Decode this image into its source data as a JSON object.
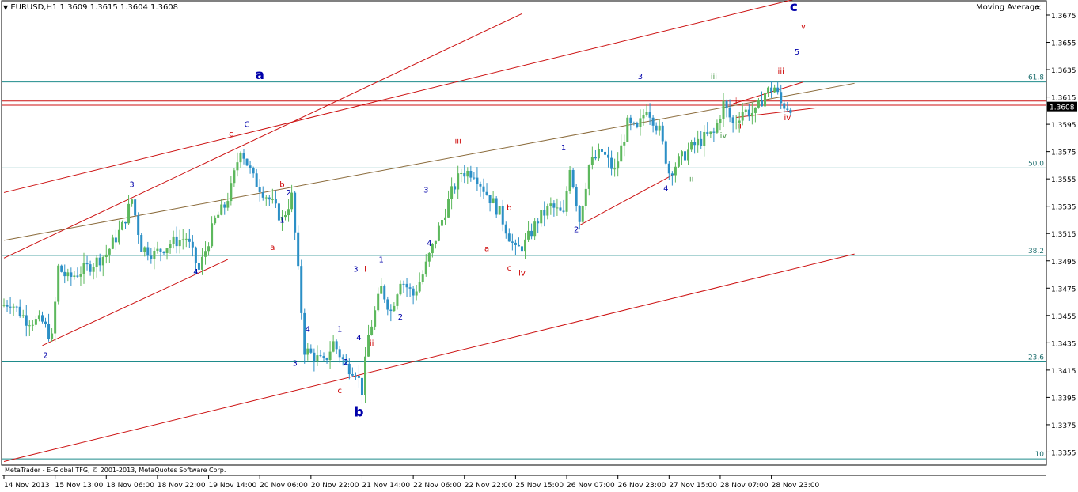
{
  "header": {
    "symbol_line": "EURUSD,H1  1.3609 1.3615 1.3604 1.3608",
    "indicator": "Moving Average",
    "close_glyph": "×",
    "menu_glyph": "▼"
  },
  "watermark": "MetaTrader - E-Global TFG, © 2001-2013, MetaQuotes Software Corp.",
  "colors": {
    "bull": "#5db85d",
    "bear": "#2b8fc6",
    "fib": "#1f8b8b",
    "channel": "#cc1111",
    "trend": "#8a6a3a",
    "wave_blue": "#0000aa",
    "wave_red": "#cc0000",
    "wave_green": "#4a9a4a",
    "price_box": "#000000"
  },
  "chart_data": {
    "type": "candlestick",
    "symbol": "EURUSD",
    "timeframe": "H1",
    "ohlc": {
      "open": 1.3609,
      "high": 1.3615,
      "low": 1.3604,
      "close": 1.3608
    },
    "current_price": "1.3608",
    "ylim": [
      1.3346,
      1.3686
    ],
    "y_ticks": [
      "1.3675",
      "1.3655",
      "1.3635",
      "1.3615",
      "1.3595",
      "1.3575",
      "1.3555",
      "1.3535",
      "1.3515",
      "1.3495",
      "1.3475",
      "1.3455",
      "1.3435",
      "1.3415",
      "1.3395",
      "1.3375",
      "1.3355"
    ],
    "x_ticks": [
      "14 Nov 2013",
      "15 Nov 13:00",
      "18 Nov 06:00",
      "18 Nov 22:00",
      "19 Nov 14:00",
      "20 Nov 06:00",
      "20 Nov 22:00",
      "21 Nov 14:00",
      "22 Nov 06:00",
      "22 Nov 22:00",
      "25 Nov 15:00",
      "26 Nov 07:00",
      "26 Nov 23:00",
      "27 Nov 15:00",
      "28 Nov 07:00",
      "28 Nov 23:00"
    ],
    "x_tick_index": [
      0,
      16,
      32,
      48,
      64,
      80,
      96,
      112,
      128,
      144,
      160,
      176,
      192,
      208,
      224,
      240
    ],
    "n_bars": 250,
    "price_path": [
      [
        0,
        1.3462
      ],
      [
        3,
        1.3465
      ],
      [
        8,
        1.3452
      ],
      [
        13,
        1.345
      ],
      [
        16,
        1.3438
      ],
      [
        18,
        1.349
      ],
      [
        21,
        1.3482
      ],
      [
        27,
        1.349
      ],
      [
        33,
        1.35
      ],
      [
        38,
        1.352
      ],
      [
        41,
        1.354
      ],
      [
        44,
        1.3505
      ],
      [
        48,
        1.35
      ],
      [
        53,
        1.3508
      ],
      [
        58,
        1.3512
      ],
      [
        62,
        1.3488
      ],
      [
        67,
        1.3525
      ],
      [
        70,
        1.3535
      ],
      [
        72,
        1.3548
      ],
      [
        75,
        1.3578
      ],
      [
        79,
        1.3555
      ],
      [
        84,
        1.354
      ],
      [
        88,
        1.3525
      ],
      [
        91,
        1.3542
      ],
      [
        92,
        1.3515
      ],
      [
        95,
        1.343
      ],
      [
        101,
        1.342
      ],
      [
        104,
        1.3435
      ],
      [
        108,
        1.3418
      ],
      [
        111,
        1.3415
      ],
      [
        113,
        1.34
      ],
      [
        115,
        1.344
      ],
      [
        119,
        1.3475
      ],
      [
        122,
        1.3458
      ],
      [
        125,
        1.3482
      ],
      [
        129,
        1.347
      ],
      [
        132,
        1.3485
      ],
      [
        135,
        1.3505
      ],
      [
        138,
        1.3525
      ],
      [
        141,
        1.3545
      ],
      [
        144,
        1.356
      ],
      [
        148,
        1.356
      ],
      [
        151,
        1.3548
      ],
      [
        156,
        1.353
      ],
      [
        161,
        1.3502
      ],
      [
        164,
        1.3508
      ],
      [
        168,
        1.3525
      ],
      [
        172,
        1.3535
      ],
      [
        176,
        1.3528
      ],
      [
        178,
        1.3565
      ],
      [
        181,
        1.3525
      ],
      [
        184,
        1.3565
      ],
      [
        188,
        1.3575
      ],
      [
        192,
        1.356
      ],
      [
        196,
        1.3595
      ],
      [
        199,
        1.359
      ],
      [
        202,
        1.3608
      ],
      [
        206,
        1.359
      ],
      [
        209,
        1.356
      ],
      [
        212,
        1.3568
      ],
      [
        216,
        1.3578
      ],
      [
        220,
        1.3585
      ],
      [
        223,
        1.3588
      ],
      [
        226,
        1.361
      ],
      [
        229,
        1.3595
      ],
      [
        232,
        1.3605
      ],
      [
        236,
        1.3603
      ],
      [
        239,
        1.3618
      ],
      [
        242,
        1.3622
      ],
      [
        244,
        1.361
      ],
      [
        246,
        1.3608
      ]
    ],
    "fib_levels": [
      {
        "label": "61.8",
        "price": 1.3626
      },
      {
        "label": "50.0",
        "price": 1.3563
      },
      {
        "label": "38.2",
        "price": 1.3499
      },
      {
        "label": "23.6",
        "price": 1.3421
      },
      {
        "label": "10",
        "price": 1.335
      }
    ],
    "h_lines": [
      1.3612,
      1.3609
    ],
    "trend_lines": [
      {
        "kind": "channel",
        "p1": [
          0,
          1.3545
        ],
        "p2": [
          248,
          1.3687
        ]
      },
      {
        "kind": "channel",
        "p1": [
          0,
          1.3497
        ],
        "p2": [
          162,
          1.3676
        ]
      },
      {
        "kind": "channel",
        "p1": [
          0,
          1.3348
        ],
        "p2": [
          266,
          1.35
        ]
      },
      {
        "kind": "channel",
        "p1": [
          12,
          1.3433
        ],
        "p2": [
          70,
          1.3496
        ]
      },
      {
        "kind": "channel",
        "p1": [
          180,
          1.3521
        ],
        "p2": [
          210,
          1.3559
        ]
      },
      {
        "kind": "channel",
        "p1": [
          228,
          1.361
        ],
        "p2": [
          250,
          1.3626
        ]
      },
      {
        "kind": "channel",
        "p1": [
          229,
          1.36
        ],
        "p2": [
          254,
          1.3607
        ]
      },
      {
        "kind": "trend",
        "p1": [
          0,
          1.351
        ],
        "p2": [
          266,
          1.3625
        ]
      }
    ],
    "annotations": [
      {
        "text": "a",
        "i": 80,
        "price": 1.3628,
        "color": "blue",
        "size": "big"
      },
      {
        "text": "b",
        "i": 111,
        "price": 1.3381,
        "color": "blue",
        "size": "big"
      },
      {
        "text": "c",
        "i": 247,
        "price": 1.3678,
        "color": "blue",
        "size": "big"
      },
      {
        "text": "C",
        "i": 76,
        "price": 1.3593,
        "color": "blue",
        "size": "small"
      },
      {
        "text": "c",
        "i": 71,
        "price": 1.3586,
        "color": "red",
        "size": "small"
      },
      {
        "text": "2",
        "i": 13,
        "price": 1.3424,
        "color": "blue",
        "size": "small"
      },
      {
        "text": "3",
        "i": 40,
        "price": 1.3549,
        "color": "blue",
        "size": "small"
      },
      {
        "text": "4",
        "i": 60,
        "price": 1.3485,
        "color": "blue",
        "size": "small"
      },
      {
        "text": "b",
        "i": 87,
        "price": 1.3549,
        "color": "red",
        "size": "small"
      },
      {
        "text": "2",
        "i": 89,
        "price": 1.3543,
        "color": "blue",
        "size": "small"
      },
      {
        "text": "1",
        "i": 87,
        "price": 1.3523,
        "color": "blue",
        "size": "small"
      },
      {
        "text": "a",
        "i": 84,
        "price": 1.3503,
        "color": "red",
        "size": "small"
      },
      {
        "text": "4",
        "i": 95,
        "price": 1.3443,
        "color": "blue",
        "size": "small"
      },
      {
        "text": "3",
        "i": 91,
        "price": 1.3418,
        "color": "blue",
        "size": "small"
      },
      {
        "text": "1",
        "i": 105,
        "price": 1.3443,
        "color": "blue",
        "size": "small"
      },
      {
        "text": "2",
        "i": 107,
        "price": 1.3419,
        "color": "blue",
        "size": "small"
      },
      {
        "text": "c",
        "i": 105,
        "price": 1.3398,
        "color": "red",
        "size": "small"
      },
      {
        "text": "3",
        "i": 110,
        "price": 1.3487,
        "color": "blue",
        "size": "small"
      },
      {
        "text": "i",
        "i": 113,
        "price": 1.3487,
        "color": "red",
        "size": "small"
      },
      {
        "text": "4",
        "i": 111,
        "price": 1.3437,
        "color": "blue",
        "size": "small"
      },
      {
        "text": "ii",
        "i": 115,
        "price": 1.3433,
        "color": "red",
        "size": "small"
      },
      {
        "text": "1",
        "i": 118,
        "price": 1.3494,
        "color": "blue",
        "size": "small"
      },
      {
        "text": "2",
        "i": 124,
        "price": 1.3452,
        "color": "blue",
        "size": "small"
      },
      {
        "text": "3",
        "i": 132,
        "price": 1.3545,
        "color": "blue",
        "size": "small"
      },
      {
        "text": "4",
        "i": 133,
        "price": 1.3506,
        "color": "blue",
        "size": "small"
      },
      {
        "text": "iii",
        "i": 142,
        "price": 1.3581,
        "color": "red",
        "size": "small"
      },
      {
        "text": "b",
        "i": 158,
        "price": 1.3532,
        "color": "red",
        "size": "small"
      },
      {
        "text": "a",
        "i": 151,
        "price": 1.3502,
        "color": "red",
        "size": "small"
      },
      {
        "text": "c",
        "i": 158,
        "price": 1.3488,
        "color": "red",
        "size": "small"
      },
      {
        "text": "iv",
        "i": 162,
        "price": 1.3484,
        "color": "red",
        "size": "small"
      },
      {
        "text": "1",
        "i": 175,
        "price": 1.3576,
        "color": "blue",
        "size": "small"
      },
      {
        "text": "2",
        "i": 179,
        "price": 1.3516,
        "color": "blue",
        "size": "small"
      },
      {
        "text": "3",
        "i": 199,
        "price": 1.3628,
        "color": "blue",
        "size": "small"
      },
      {
        "text": "4",
        "i": 207,
        "price": 1.3546,
        "color": "blue",
        "size": "small"
      },
      {
        "text": "iii",
        "i": 222,
        "price": 1.3628,
        "color": "green",
        "size": "small"
      },
      {
        "text": "ii",
        "i": 215,
        "price": 1.3553,
        "color": "green",
        "size": "small"
      },
      {
        "text": "iv",
        "i": 225,
        "price": 1.3585,
        "color": "green",
        "size": "small"
      },
      {
        "text": "i",
        "i": 229,
        "price": 1.361,
        "color": "red",
        "size": "small"
      },
      {
        "text": "ii",
        "i": 230,
        "price": 1.3592,
        "color": "red",
        "size": "small"
      },
      {
        "text": "iii",
        "i": 243,
        "price": 1.3632,
        "color": "red",
        "size": "small"
      },
      {
        "text": "iv",
        "i": 245,
        "price": 1.3598,
        "color": "red",
        "size": "small"
      },
      {
        "text": "v",
        "i": 250,
        "price": 1.3665,
        "color": "red",
        "size": "small"
      },
      {
        "text": "5",
        "i": 248,
        "price": 1.3646,
        "color": "blue",
        "size": "small"
      }
    ]
  }
}
